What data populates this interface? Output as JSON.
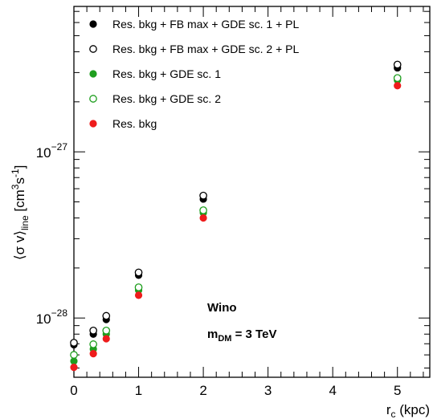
{
  "chart_data": {
    "type": "scatter",
    "x_scale": "linear",
    "y_scale": "log",
    "xlim": [
      0,
      5.5
    ],
    "ylim": [
      4.4e-29,
      7.5e-27
    ],
    "xlabel": {
      "main": "r",
      "sub": "c",
      "rest": " (kpc)"
    },
    "ylabel": {
      "open": "⟨σ v⟩",
      "sub": "line",
      "unit_open": " [cm",
      "sup1": "3",
      "unit_mid": "s",
      "sup2": "-1",
      "unit_close": "]"
    },
    "x_ticks": [
      {
        "value": 0,
        "label": "0"
      },
      {
        "value": 1,
        "label": "1"
      },
      {
        "value": 2,
        "label": "2"
      },
      {
        "value": 3,
        "label": "3"
      },
      {
        "value": 4,
        "label": "4"
      },
      {
        "value": 5,
        "label": "5"
      }
    ],
    "y_major_ticks": [
      {
        "value": 1e-28,
        "base": "10",
        "exp": "−28"
      },
      {
        "value": 1e-27,
        "base": "10",
        "exp": "−27"
      }
    ],
    "legend_position": "top-left",
    "grid": false,
    "series": [
      {
        "name": "Res. bkg + FB max + GDE sc. 1 + PL",
        "color": "#000000",
        "filled": true,
        "x": [
          0.0,
          0.3,
          0.5,
          1.0,
          2.0,
          5.0
        ],
        "y": [
          6.9e-29,
          8e-29,
          9.8e-29,
          1.81e-28,
          5.2e-28,
          3.2e-27
        ]
      },
      {
        "name": "Res. bkg + FB max + GDE sc. 2 + PL",
        "color": "#000000",
        "filled": false,
        "x": [
          0.0,
          0.3,
          0.5,
          1.0,
          2.0,
          5.0
        ],
        "y": [
          7.1e-29,
          8.4e-29,
          1.03e-28,
          1.88e-28,
          5.45e-28,
          3.35e-27
        ]
      },
      {
        "name": "Res. bkg + GDE sc. 1",
        "color": "#1e9e1e",
        "filled": true,
        "x": [
          0.0,
          0.3,
          0.5,
          1.0,
          2.0,
          5.0
        ],
        "y": [
          5.5e-29,
          6.5e-29,
          8e-29,
          1.47e-28,
          4.3e-28,
          2.7e-27
        ]
      },
      {
        "name": "Res. bkg + GDE sc. 2",
        "color": "#1e9e1e",
        "filled": false,
        "x": [
          0.0,
          0.3,
          0.5,
          1.0,
          2.0,
          5.0
        ],
        "y": [
          6e-29,
          6.95e-29,
          8.4e-29,
          1.53e-28,
          4.45e-28,
          2.78e-27
        ]
      },
      {
        "name": "Res. bkg",
        "color": "#ee1c1c",
        "filled": true,
        "x": [
          0.0,
          0.3,
          0.5,
          1.0,
          2.0,
          5.0
        ],
        "y": [
          5.05e-29,
          6.1e-29,
          7.5e-29,
          1.37e-28,
          4e-28,
          2.5e-27
        ]
      }
    ],
    "annotations": [
      {
        "text": "Wino"
      },
      {
        "main": "m",
        "sub": "DM",
        "rest": " = 3 TeV"
      }
    ]
  }
}
